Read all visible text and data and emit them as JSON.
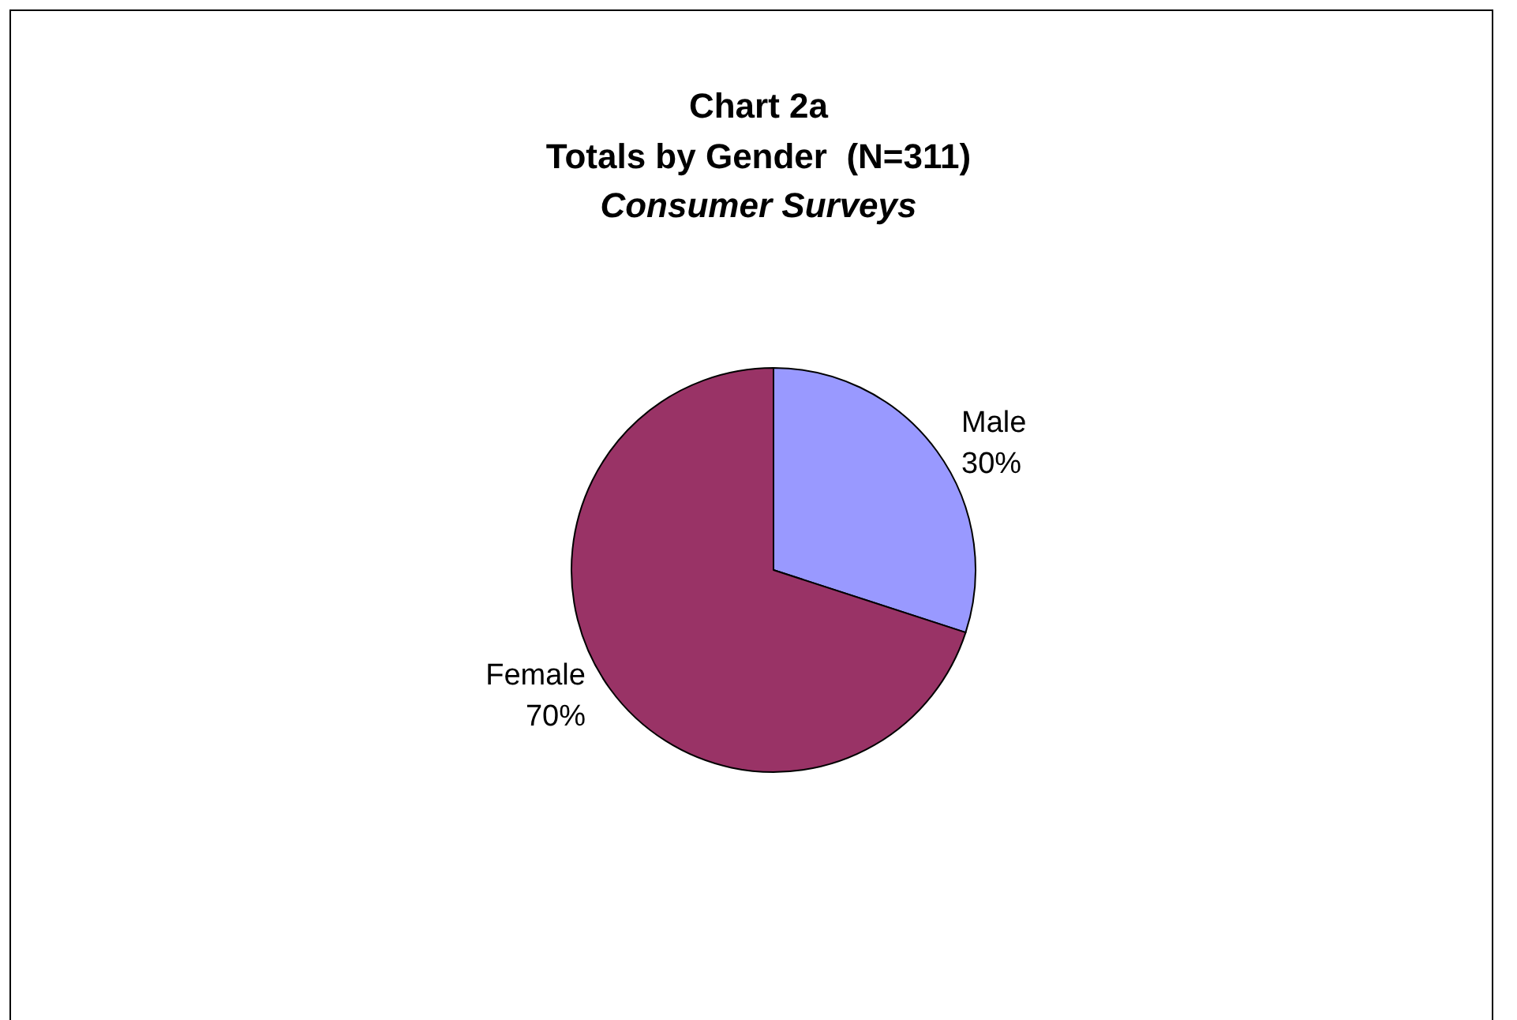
{
  "chart_data": {
    "type": "pie",
    "title": "Chart 2a\nTotals by Gender  (N=311)",
    "subtitle": "Consumer Surveys",
    "categories": [
      "Male",
      "Female"
    ],
    "values": [
      30,
      70
    ],
    "value_labels": [
      "30%",
      "70%"
    ],
    "colors": [
      "#9999ff",
      "#993366"
    ],
    "legend": false
  }
}
